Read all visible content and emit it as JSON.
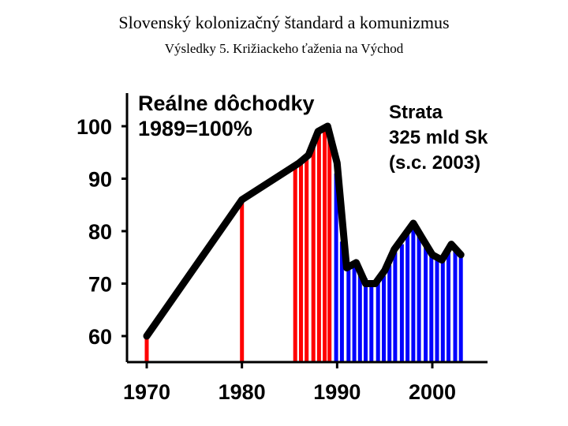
{
  "page": {
    "title": "Slovenský kolonizačný štandard a komunizmus",
    "subtitle": "Výsledky 5. Križiackeho ťaženia na Východ"
  },
  "chart_data": {
    "type": "bar",
    "title_lines": [
      "Reálne dôchodky",
      "1989=100%"
    ],
    "annotation_lines": [
      "Strata",
      "325 mld Sk",
      "(s.c. 2003)"
    ],
    "xlabel": "",
    "ylabel": "",
    "xlim": [
      1970,
      2004
    ],
    "ylim": [
      60,
      100
    ],
    "x_ticks": [
      1970,
      1980,
      1990,
      2000
    ],
    "y_ticks": [
      60,
      70,
      80,
      90,
      100
    ],
    "grid": false,
    "colors": {
      "red": "#ff0000",
      "blue": "#0000ff",
      "line": "#000000"
    },
    "split_year": 1989.5,
    "line_points": [
      {
        "x": 1970,
        "y": 60
      },
      {
        "x": 1980,
        "y": 86
      },
      {
        "x": 1986,
        "y": 93
      },
      {
        "x": 1987,
        "y": 94.5
      },
      {
        "x": 1988,
        "y": 99
      },
      {
        "x": 1989,
        "y": 100
      },
      {
        "x": 1990,
        "y": 93
      },
      {
        "x": 1991,
        "y": 73
      },
      {
        "x": 1992,
        "y": 74
      },
      {
        "x": 1993,
        "y": 70
      },
      {
        "x": 1994,
        "y": 70
      },
      {
        "x": 1995,
        "y": 72.5
      },
      {
        "x": 1996,
        "y": 76.5
      },
      {
        "x": 1997,
        "y": 79
      },
      {
        "x": 1998,
        "y": 81.5
      },
      {
        "x": 1999,
        "y": 78.5
      },
      {
        "x": 2000,
        "y": 75.5
      },
      {
        "x": 2001,
        "y": 74.5
      },
      {
        "x": 2002,
        "y": 77.5
      },
      {
        "x": 2003,
        "y": 75.5
      }
    ],
    "bars": [
      {
        "x": 1970,
        "value": 60
      },
      {
        "x": 1980,
        "value": 86
      },
      {
        "x": 1985.6,
        "value": 93
      },
      {
        "x": 1986.2,
        "value": 93.5
      },
      {
        "x": 1986.8,
        "value": 94.2
      },
      {
        "x": 1987.5,
        "value": 96.5
      },
      {
        "x": 1988.1,
        "value": 99.2
      },
      {
        "x": 1988.7,
        "value": 99.8
      },
      {
        "x": 1989.2,
        "value": 98
      },
      {
        "x": 1989.9,
        "value": 91
      },
      {
        "x": 1990.5,
        "value": 78
      },
      {
        "x": 1991.2,
        "value": 73.2
      },
      {
        "x": 1991.8,
        "value": 73.6
      },
      {
        "x": 1992.4,
        "value": 73
      },
      {
        "x": 1993.0,
        "value": 71
      },
      {
        "x": 1993.6,
        "value": 70
      },
      {
        "x": 1994.3,
        "value": 70.2
      },
      {
        "x": 1994.9,
        "value": 71.5
      },
      {
        "x": 1995.5,
        "value": 73.5
      },
      {
        "x": 1996.1,
        "value": 76
      },
      {
        "x": 1996.8,
        "value": 77.5
      },
      {
        "x": 1997.4,
        "value": 79.5
      },
      {
        "x": 1998.0,
        "value": 81.2
      },
      {
        "x": 1998.6,
        "value": 79.5
      },
      {
        "x": 1999.3,
        "value": 77.6
      },
      {
        "x": 1999.9,
        "value": 75.8
      },
      {
        "x": 2000.5,
        "value": 75
      },
      {
        "x": 2001.1,
        "value": 75.5
      },
      {
        "x": 2001.7,
        "value": 77.2
      },
      {
        "x": 2002.4,
        "value": 76.5
      },
      {
        "x": 2003.0,
        "value": 75.5
      }
    ]
  }
}
